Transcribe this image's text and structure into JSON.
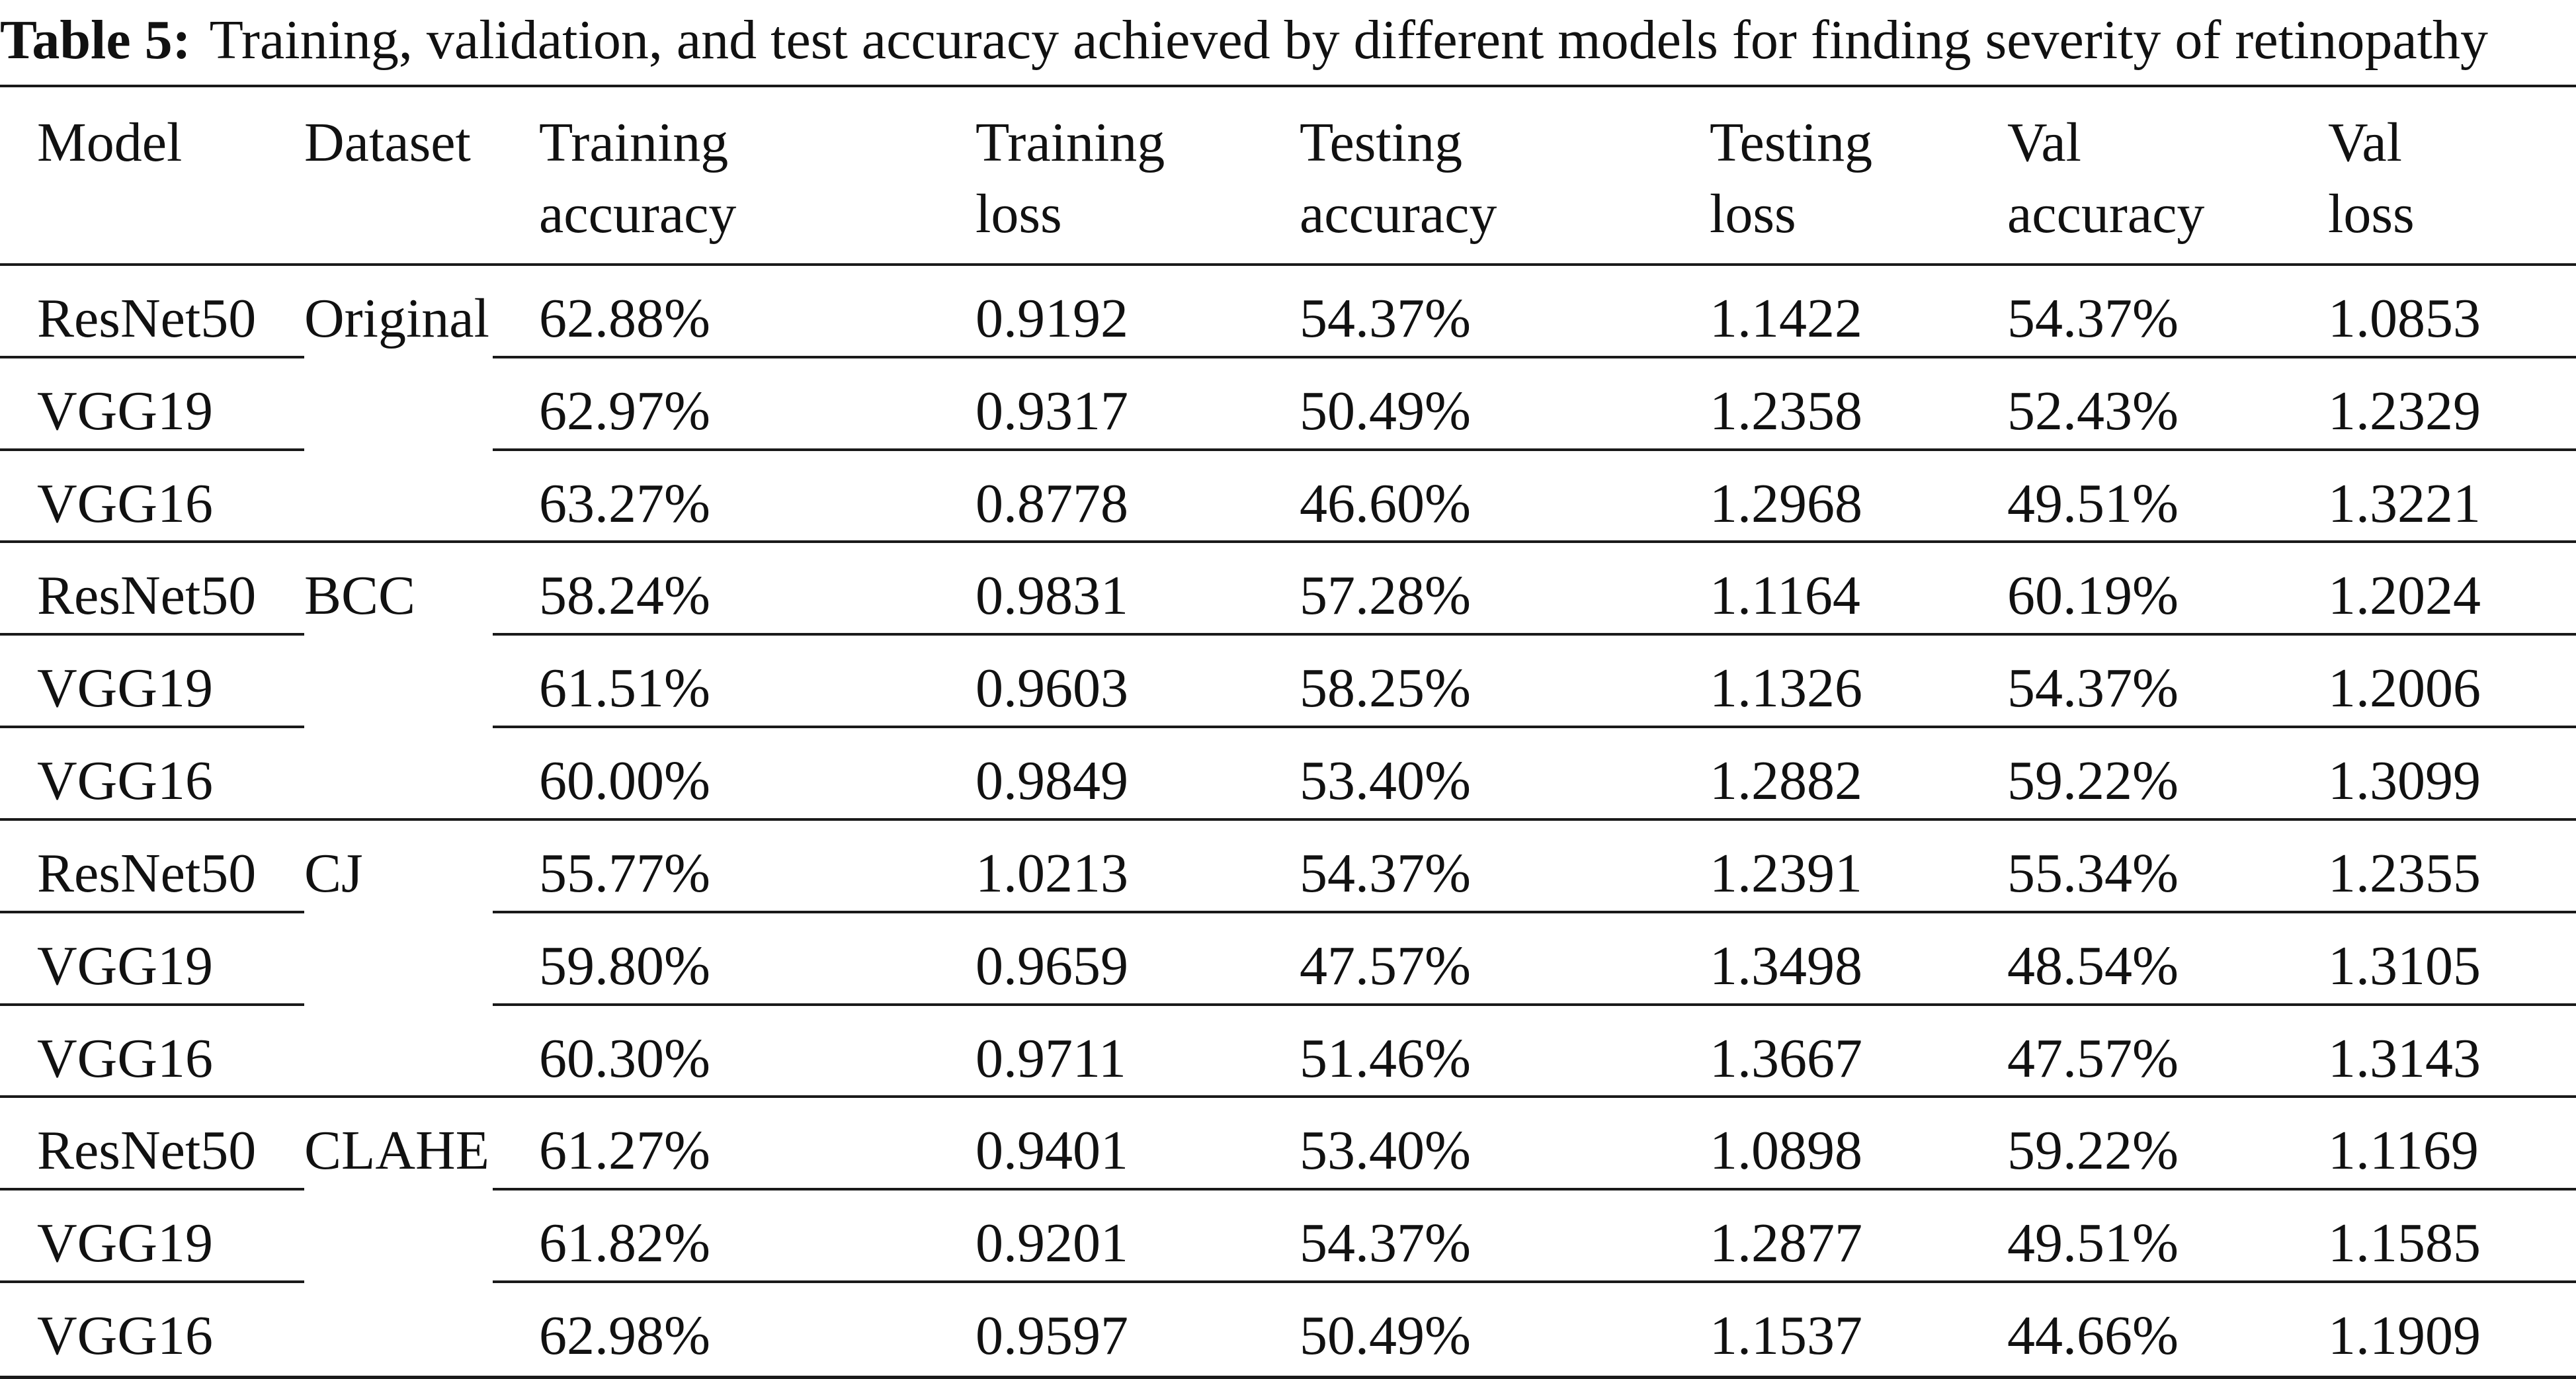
{
  "caption": {
    "label": "Table 5:",
    "text": "Training, validation, and test accuracy achieved by different models for finding severity of retinopathy"
  },
  "header": [
    {
      "line1": "Model",
      "line2": ""
    },
    {
      "line1": "Dataset",
      "line2": ""
    },
    {
      "line1": "Training",
      "line2": "accuracy"
    },
    {
      "line1": "Training",
      "line2": "loss"
    },
    {
      "line1": "Testing",
      "line2": "accuracy"
    },
    {
      "line1": "Testing",
      "line2": "loss"
    },
    {
      "line1": "Val",
      "line2": "accuracy"
    },
    {
      "line1": "Val",
      "line2": "loss"
    }
  ],
  "rows": [
    {
      "model": "ResNet50",
      "dataset": "Original",
      "train_acc": "62.88%",
      "train_loss": "0.9192",
      "test_acc": "54.37%",
      "test_loss": "1.1422",
      "val_acc": "54.37%",
      "val_loss": "1.0853"
    },
    {
      "model": "VGG19",
      "dataset": "",
      "train_acc": "62.97%",
      "train_loss": "0.9317",
      "test_acc": "50.49%",
      "test_loss": "1.2358",
      "val_acc": "52.43%",
      "val_loss": "1.2329"
    },
    {
      "model": "VGG16",
      "dataset": "",
      "train_acc": "63.27%",
      "train_loss": "0.8778",
      "test_acc": "46.60%",
      "test_loss": "1.2968",
      "val_acc": "49.51%",
      "val_loss": "1.3221"
    },
    {
      "model": "ResNet50",
      "dataset": "BCC",
      "train_acc": "58.24%",
      "train_loss": "0.9831",
      "test_acc": "57.28%",
      "test_loss": "1.1164",
      "val_acc": "60.19%",
      "val_loss": "1.2024"
    },
    {
      "model": "VGG19",
      "dataset": "",
      "train_acc": "61.51%",
      "train_loss": "0.9603",
      "test_acc": "58.25%",
      "test_loss": "1.1326",
      "val_acc": "54.37%",
      "val_loss": "1.2006"
    },
    {
      "model": "VGG16",
      "dataset": "",
      "train_acc": "60.00%",
      "train_loss": "0.9849",
      "test_acc": "53.40%",
      "test_loss": "1.2882",
      "val_acc": "59.22%",
      "val_loss": "1.3099"
    },
    {
      "model": "ResNet50",
      "dataset": "CJ",
      "train_acc": "55.77%",
      "train_loss": "1.0213",
      "test_acc": "54.37%",
      "test_loss": "1.2391",
      "val_acc": "55.34%",
      "val_loss": "1.2355"
    },
    {
      "model": "VGG19",
      "dataset": "",
      "train_acc": "59.80%",
      "train_loss": "0.9659",
      "test_acc": "47.57%",
      "test_loss": "1.3498",
      "val_acc": "48.54%",
      "val_loss": "1.3105"
    },
    {
      "model": "VGG16",
      "dataset": "",
      "train_acc": "60.30%",
      "train_loss": "0.9711",
      "test_acc": "51.46%",
      "test_loss": "1.3667",
      "val_acc": "47.57%",
      "val_loss": "1.3143"
    },
    {
      "model": "ResNet50",
      "dataset": "CLAHE",
      "train_acc": "61.27%",
      "train_loss": "0.9401",
      "test_acc": "53.40%",
      "test_loss": "1.0898",
      "val_acc": "59.22%",
      "val_loss": "1.1169"
    },
    {
      "model": "VGG19",
      "dataset": "",
      "train_acc": "61.82%",
      "train_loss": "0.9201",
      "test_acc": "54.37%",
      "test_loss": "1.2877",
      "val_acc": "49.51%",
      "val_loss": "1.1585"
    },
    {
      "model": "VGG16",
      "dataset": "",
      "train_acc": "62.98%",
      "train_loss": "0.9597",
      "test_acc": "50.49%",
      "test_loss": "1.1537",
      "val_acc": "44.66%",
      "val_loss": "1.1909"
    }
  ]
}
